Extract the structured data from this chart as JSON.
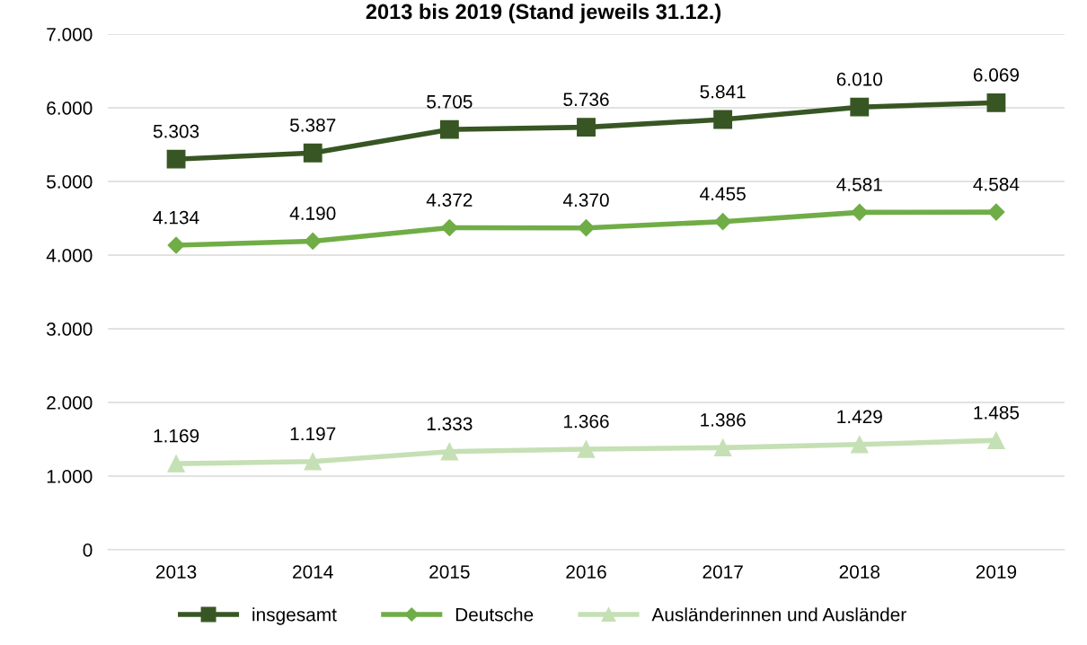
{
  "chart_data": {
    "type": "line",
    "title": "2013 bis 2019 (Stand jeweils 31.12.)",
    "categories": [
      "2013",
      "2014",
      "2015",
      "2016",
      "2017",
      "2018",
      "2019"
    ],
    "series": [
      {
        "name": "insgesamt",
        "color": "#375623",
        "marker": "square",
        "values": [
          5303,
          5387,
          5705,
          5736,
          5841,
          6010,
          6069
        ],
        "value_labels": [
          "5.303",
          "5.387",
          "5.705",
          "5.736",
          "5.841",
          "6.010",
          "6.069"
        ]
      },
      {
        "name": "Deutsche",
        "color": "#70ad47",
        "marker": "diamond",
        "values": [
          4134,
          4190,
          4372,
          4370,
          4455,
          4581,
          4584
        ],
        "value_labels": [
          "4.134",
          "4.190",
          "4.372",
          "4.370",
          "4.455",
          "4.581",
          "4.584"
        ]
      },
      {
        "name": "Ausländerinnen und Ausländer",
        "color": "#c5e0b4",
        "marker": "triangle",
        "values": [
          1169,
          1197,
          1333,
          1366,
          1386,
          1429,
          1485
        ],
        "value_labels": [
          "1.169",
          "1.197",
          "1.333",
          "1.366",
          "1.386",
          "1.429",
          "1.485"
        ]
      }
    ],
    "ylim": [
      0,
      7000
    ],
    "yticks": [
      0,
      {
        "value": 1000,
        "label": "1.000"
      },
      {
        "value": 2000,
        "label": "2.000"
      },
      {
        "value": 3000,
        "label": "3.000"
      },
      {
        "value": 4000,
        "label": "4.000"
      },
      {
        "value": 5000,
        "label": "5.000"
      },
      {
        "value": 6000,
        "label": "6.000"
      },
      {
        "value": 7000,
        "label": "7.000"
      }
    ],
    "grid": "y",
    "legend": "bottom",
    "line_style": "solid"
  }
}
